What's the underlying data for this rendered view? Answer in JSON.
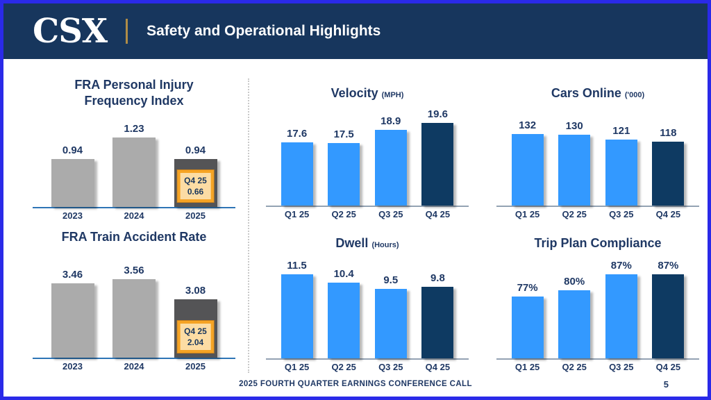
{
  "header": {
    "logo": "CSX",
    "title": "Safety and Operational Highlights",
    "bg_color": "#17365D",
    "divider_color": "#B08C47"
  },
  "page": {
    "footer": "2025 FOURTH QUARTER EARNINGS CONFERENCE CALL",
    "page_number": "5",
    "border_color": "#2A2AE8"
  },
  "palette": {
    "blue": "#3399FF",
    "navy": "#0E3A62",
    "gray": "#ABABAB",
    "charcoal": "#545456",
    "text_navy": "#1F3864",
    "callout_fill": "#FCDCA4",
    "callout_border": "#F5A324",
    "left_axis": "#2E75B6",
    "right_axis": "#93A2B3"
  },
  "chart_data": [
    {
      "type": "bar",
      "title": "FRA Personal Injury",
      "title_line2": "Frequency Index",
      "unit": "",
      "categories": [
        "2023",
        "2024",
        "2025"
      ],
      "values": [
        0.94,
        1.23,
        0.94
      ],
      "labels": [
        "0.94",
        "1.23",
        "0.94"
      ],
      "ylim": [
        0.3,
        1.33
      ],
      "colors": [
        "gray",
        "gray",
        "charcoal"
      ],
      "axis_color": "#2E75B6",
      "callout": {
        "index": 2,
        "label": "Q4 25",
        "value": "0.66"
      }
    },
    {
      "type": "bar",
      "title": "FRA Train Accident Rate",
      "title_line2": "",
      "unit": "",
      "categories": [
        "2023",
        "2024",
        "2025"
      ],
      "values": [
        3.46,
        3.56,
        3.08
      ],
      "labels": [
        "3.46",
        "3.56",
        "3.08"
      ],
      "ylim": [
        1.7,
        3.7
      ],
      "colors": [
        "gray",
        "gray",
        "charcoal"
      ],
      "axis_color": "#2E75B6",
      "callout": {
        "index": 2,
        "label": "Q4 25",
        "value": "2.04"
      }
    },
    {
      "type": "bar",
      "title": "Velocity",
      "title_line2": "",
      "unit": "(MPH)",
      "categories": [
        "Q1 25",
        "Q2 25",
        "Q3 25",
        "Q4 25"
      ],
      "values": [
        17.6,
        17.5,
        18.9,
        19.6
      ],
      "labels": [
        "17.6",
        "17.5",
        "18.9",
        "19.6"
      ],
      "ylim": [
        11,
        19.6
      ],
      "colors": [
        "blue",
        "blue",
        "blue",
        "navy"
      ],
      "axis_color": "#93A2B3",
      "callout": null
    },
    {
      "type": "bar",
      "title": "Cars Online",
      "title_line2": "",
      "unit": "('000)",
      "categories": [
        "Q1 25",
        "Q2 25",
        "Q3 25",
        "Q4 25"
      ],
      "values": [
        132,
        130,
        121,
        118
      ],
      "labels": [
        "132",
        "130",
        "121",
        "118"
      ],
      "ylim": [
        0,
        152
      ],
      "colors": [
        "blue",
        "blue",
        "blue",
        "navy"
      ],
      "axis_color": "#93A2B3",
      "callout": null
    },
    {
      "type": "bar",
      "title": "Dwell",
      "title_line2": "",
      "unit": "(Hours)",
      "categories": [
        "Q1 25",
        "Q2 25",
        "Q3 25",
        "Q4 25"
      ],
      "values": [
        11.5,
        10.4,
        9.5,
        9.8
      ],
      "labels": [
        "11.5",
        "10.4",
        "9.5",
        "9.8"
      ],
      "ylim": [
        0,
        11.7
      ],
      "colors": [
        "blue",
        "blue",
        "blue",
        "navy"
      ],
      "axis_color": "#93A2B3",
      "callout": null
    },
    {
      "type": "bar",
      "title": "Trip Plan Compliance",
      "title_line2": "",
      "unit": "",
      "categories": [
        "Q1 25",
        "Q2 25",
        "Q3 25",
        "Q4 25"
      ],
      "values": [
        77,
        80,
        87,
        87
      ],
      "labels": [
        "77%",
        "80%",
        "87%",
        "87%"
      ],
      "ylim": [
        50,
        87.5
      ],
      "colors": [
        "blue",
        "blue",
        "blue",
        "navy"
      ],
      "axis_color": "#93A2B3",
      "callout": null
    }
  ]
}
